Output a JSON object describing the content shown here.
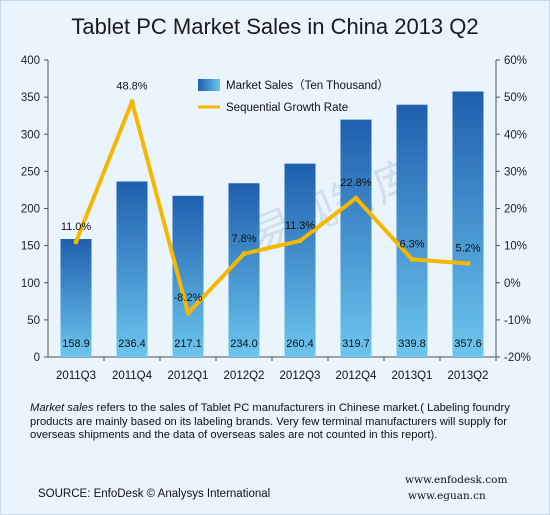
{
  "chart_data": {
    "type": "bar",
    "title": "Tablet PC Market Sales in China 2013 Q2",
    "categories": [
      "2011Q3",
      "2011Q4",
      "2012Q1",
      "2012Q2",
      "2012Q3",
      "2012Q4",
      "2013Q1",
      "2013Q2"
    ],
    "series": [
      {
        "name": "Market Sales（Ten Thousand）",
        "type": "bar",
        "axis": "left",
        "values": [
          158.9,
          236.4,
          217.1,
          234.0,
          260.4,
          319.7,
          339.8,
          357.6
        ],
        "labels": [
          "158.9",
          "236.4",
          "217.1",
          "234.0",
          "260.4",
          "319.7",
          "339.8",
          "357.6"
        ]
      },
      {
        "name": "Sequential Growth Rate",
        "type": "line",
        "axis": "right",
        "values": [
          11.0,
          48.8,
          -8.2,
          7.8,
          11.3,
          22.8,
          6.3,
          5.2
        ],
        "labels": [
          "11.0%",
          "48.8%",
          "-8.2%",
          "7.8%",
          "11.3%",
          "22.8%",
          "6.3%",
          "5.2%"
        ]
      }
    ],
    "ylim": [
      0,
      400
    ],
    "yticks": [
      "0",
      "50",
      "100",
      "150",
      "200",
      "250",
      "300",
      "350",
      "400"
    ],
    "y2lim": [
      -20,
      60
    ],
    "y2ticks": [
      "-20%",
      "-10%",
      "0%",
      "10%",
      "20%",
      "30%",
      "40%",
      "50%",
      "60%"
    ],
    "legend_position": "top-center",
    "grid": false,
    "colors": {
      "bar_top": "#1f5fae",
      "bar_bottom": "#6cc6ee",
      "line": "#f5b800"
    }
  },
  "note": {
    "lead": "Market sales",
    "text": " refers to the sales of Tablet PC manufacturers in Chinese market.( Labeling foundry products are mainly based on its labeling brands. Very few terminal manufacturers will supply for overseas shipments and the data of overseas sales are not counted in this report)."
  },
  "source": "SOURCE: EnfoDesk © Analysys International",
  "urls": [
    "www.enfodesk.com",
    "www.eguan.cn"
  ],
  "watermark": "易观智库"
}
